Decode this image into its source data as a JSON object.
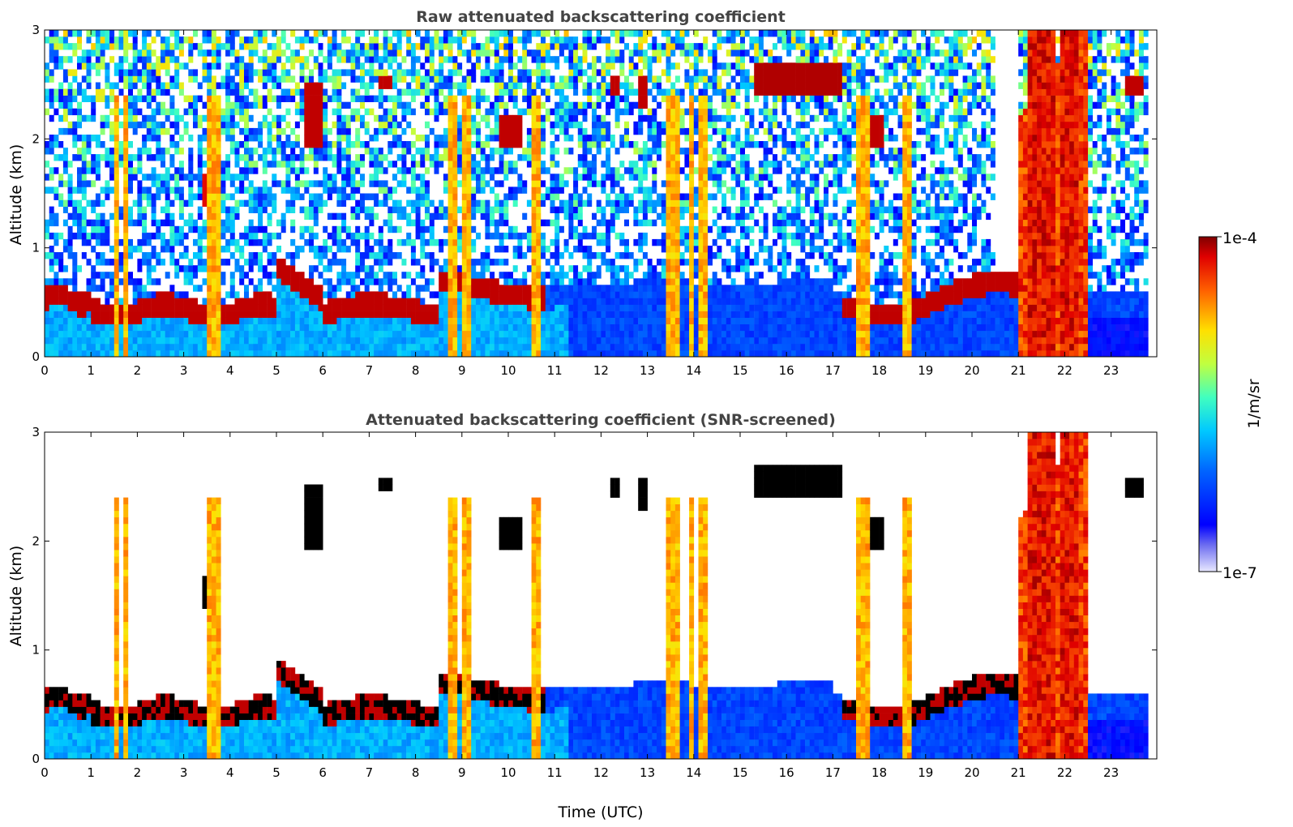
{
  "chart_data": [
    {
      "type": "heatmap",
      "title": "Raw attenuated backscattering coefficient",
      "xlabel": "",
      "ylabel": "Altitude (km)",
      "xlim": [
        0,
        24
      ],
      "ylim": [
        0,
        3
      ],
      "x_ticks": [
        "0",
        "1",
        "2",
        "3",
        "4",
        "5",
        "6",
        "7",
        "8",
        "9",
        "10",
        "11",
        "12",
        "13",
        "14",
        "15",
        "16",
        "17",
        "18",
        "19",
        "20",
        "21",
        "22",
        "23"
      ],
      "y_ticks": [
        "0",
        "1",
        "2",
        "3"
      ],
      "screened": false,
      "features": [
        {
          "name": "boundary layer top",
          "time_range": [
            0,
            21
          ],
          "altitude_km": [
            0.3,
            0.6
          ]
        },
        {
          "name": "high aerosol layer",
          "time_range": [
            15.8,
            17.2
          ],
          "altitude_km": [
            2.4,
            2.7
          ]
        },
        {
          "name": "rain shafts",
          "times": [
            1.6,
            8.8,
            13.6,
            14.0,
            17.6,
            18.6,
            21.4,
            22.1
          ]
        }
      ]
    },
    {
      "type": "heatmap",
      "title": "Attenuated backscattering coefficient (SNR-screened)",
      "xlabel": "Time (UTC)",
      "ylabel": "Altitude (km)",
      "xlim": [
        0,
        24
      ],
      "ylim": [
        0,
        3
      ],
      "x_ticks": [
        "0",
        "1",
        "2",
        "3",
        "4",
        "5",
        "6",
        "7",
        "8",
        "9",
        "10",
        "11",
        "12",
        "13",
        "14",
        "15",
        "16",
        "17",
        "18",
        "19",
        "20",
        "21",
        "22",
        "23"
      ],
      "y_ticks": [
        "0",
        "1",
        "2",
        "3"
      ],
      "screened": true
    }
  ],
  "colorbar": {
    "max_label": "1e-4",
    "min_label": "1e-7",
    "unit_label": "1/m/sr",
    "scale": "log",
    "range": [
      1e-07,
      0.0001
    ]
  }
}
